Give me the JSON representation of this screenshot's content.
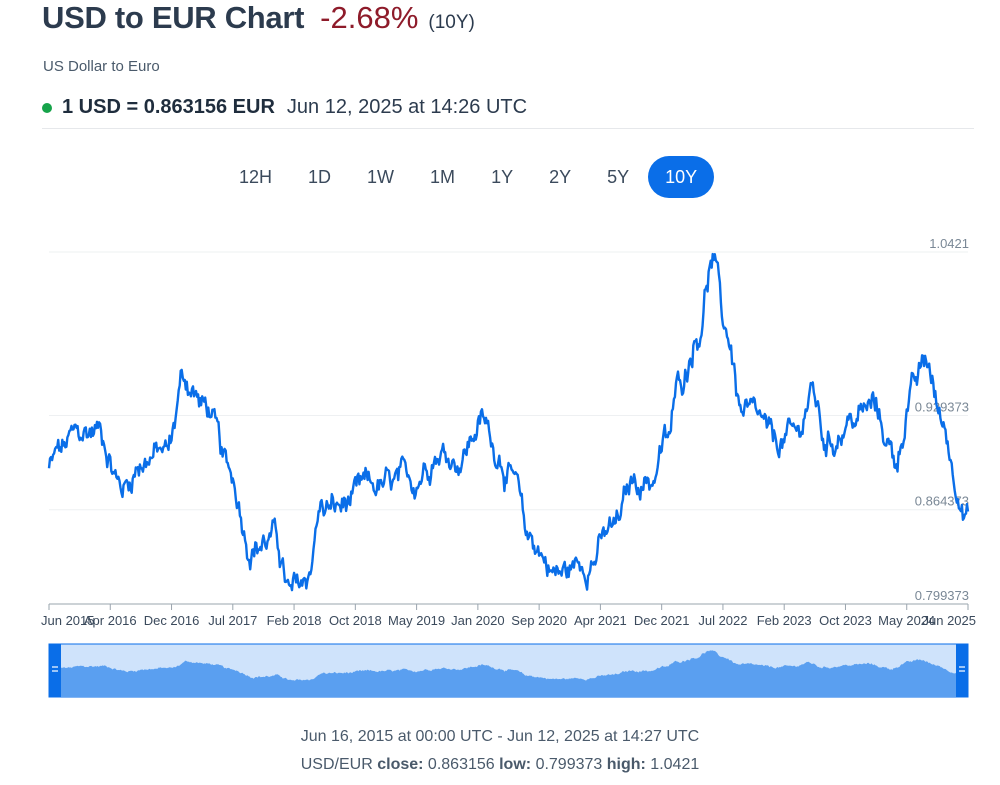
{
  "header": {
    "title": "USD to EUR Chart",
    "change": "-2.68%",
    "period": "(10Y)",
    "subtitle": "US Dollar to Euro",
    "rate": "1 USD = 0.863156 EUR",
    "timestamp": "Jun 12, 2025 at 14:26 UTC",
    "status_color": "#16a34a"
  },
  "tabs": [
    {
      "label": "12H",
      "active": false
    },
    {
      "label": "1D",
      "active": false
    },
    {
      "label": "1W",
      "active": false
    },
    {
      "label": "1M",
      "active": false
    },
    {
      "label": "1Y",
      "active": false
    },
    {
      "label": "2Y",
      "active": false
    },
    {
      "label": "5Y",
      "active": false
    },
    {
      "label": "10Y",
      "active": true
    }
  ],
  "footer": {
    "range": "Jun 16, 2015 at 00:00 UTC - Jun 12, 2025 at 14:27 UTC",
    "pair": "USD/EUR",
    "close_label": "close:",
    "close": "0.863156",
    "low_label": "low:",
    "low": "0.799373",
    "high_label": "high:",
    "high": "1.0421"
  },
  "chart_data": {
    "type": "line",
    "line_color": "#0a6ee8",
    "y_ticks": [
      "1.0421",
      "0.929373",
      "0.864373",
      "0.799373"
    ],
    "ylim": [
      0.799373,
      1.0421
    ],
    "x_ticks": [
      "Jun 2015",
      "Apr 2016",
      "Dec 2016",
      "Jul 2017",
      "Feb 2018",
      "Oct 2018",
      "May 2019",
      "Jan 2020",
      "Sep 2020",
      "Apr 2021",
      "Dec 2021",
      "Jul 2022",
      "Feb 2023",
      "Oct 2023",
      "May 2024",
      "Jun 2025"
    ],
    "series": [
      {
        "x": [
          "2015-06",
          "2015-08",
          "2015-10",
          "2016-01",
          "2016-04",
          "2016-07",
          "2016-10",
          "2016-12",
          "2017-03",
          "2017-06",
          "2017-09",
          "2017-12",
          "2018-02",
          "2018-04",
          "2018-06",
          "2018-08",
          "2018-10",
          "2018-12",
          "2019-03",
          "2019-06",
          "2019-09",
          "2019-12",
          "2020-03",
          "2020-05",
          "2020-07",
          "2020-09",
          "2021-01",
          "2021-05",
          "2021-08",
          "2021-11",
          "2022-01",
          "2022-03",
          "2022-05",
          "2022-07",
          "2022-09",
          "2022-11",
          "2023-01",
          "2023-03",
          "2023-05",
          "2023-08",
          "2023-10",
          "2023-12",
          "2024-03",
          "2024-06",
          "2024-09",
          "2024-11",
          "2025-01",
          "2025-03",
          "2025-05",
          "2025-06"
        ],
        "values": [
          0.89,
          0.905,
          0.915,
          0.92,
          0.88,
          0.9,
          0.905,
          0.955,
          0.935,
          0.89,
          0.84,
          0.845,
          0.805,
          0.815,
          0.865,
          0.865,
          0.87,
          0.88,
          0.88,
          0.885,
          0.905,
          0.9,
          0.925,
          0.905,
          0.885,
          0.845,
          0.82,
          0.83,
          0.85,
          0.885,
          0.885,
          0.91,
          0.955,
          0.985,
          1.035,
          0.985,
          0.93,
          0.925,
          0.91,
          0.915,
          0.945,
          0.91,
          0.925,
          0.935,
          0.9,
          0.945,
          0.965,
          0.925,
          0.885,
          0.863156
        ]
      }
    ],
    "grid": true,
    "navigator": true
  }
}
